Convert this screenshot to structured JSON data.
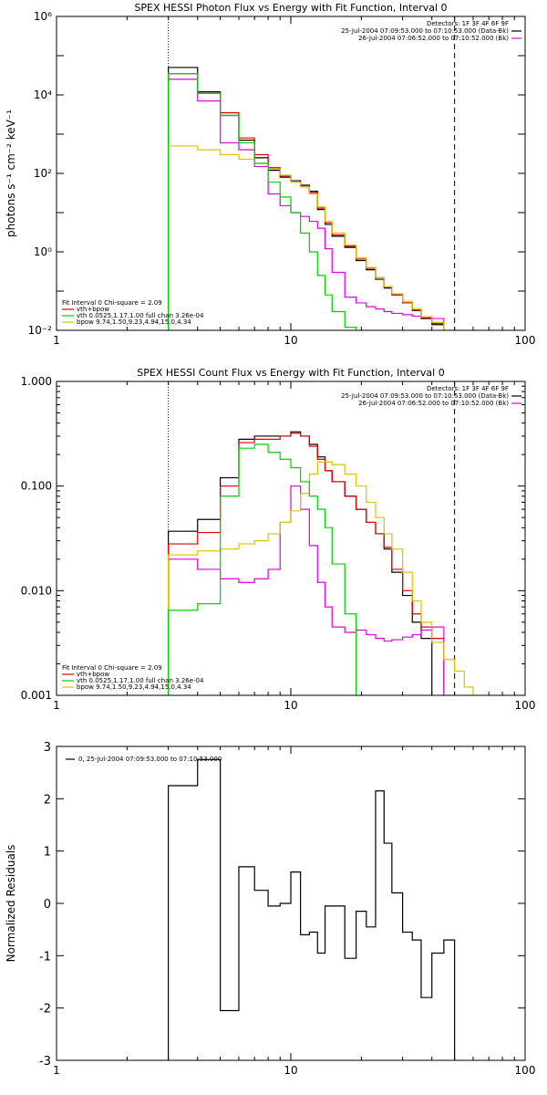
{
  "colors": {
    "data": "#000000",
    "total": "#e00000",
    "vth": "#00d000",
    "bpow": "#e0c000",
    "bk": "#e000e0"
  },
  "chart_data": [
    {
      "type": "line",
      "title": "SPEX HESSI Photon Flux vs Energy with Fit Function, Interval 0",
      "xlabel": "",
      "ylabel": "photons s⁻¹ cm⁻² keV⁻¹",
      "xlim": [
        1,
        100
      ],
      "ylim": [
        0.01,
        1000000
      ],
      "xscale": "log",
      "yscale": "log",
      "xticks": [
        "1",
        "10",
        "100"
      ],
      "yticks": [
        "10⁻²",
        "10⁰",
        "10²",
        "10⁴",
        "10⁶"
      ],
      "legend_right": [
        "Detectors: 1F 3F 4F 6F 9F",
        "25-Jul-2004 07:09:53.000 to 07:10:53.000 (Data-Bk)",
        "26-Jul-2004 07:06:52.000 to 07:10:52.000 (Bk)"
      ],
      "legend_left": [
        "Fit Interval 0   Chi-square = 2.09",
        "vth+bpow",
        "vth 0.0525,1.17,1.00  full chan 3.26e-04",
        "bpow 9.74,1.50,9.23,4.94,15.0,4.34"
      ],
      "edges": [
        3,
        4,
        5,
        6,
        7,
        8,
        9,
        10,
        11,
        12,
        13,
        14,
        15,
        17,
        19,
        21,
        23,
        25,
        27,
        30,
        33,
        36,
        40,
        45,
        50
      ],
      "series": [
        {
          "name": "25-Jul-2004 07:09:53.000 to 07:10:53.000 (Data-Bk)",
          "color": "#000000",
          "values": [
            50000,
            12000,
            3000,
            700,
            250,
            120,
            80,
            65,
            50,
            35,
            12,
            5,
            2.5,
            1.3,
            0.6,
            0.35,
            0.2,
            0.12,
            0.08,
            0.05,
            0.032,
            0.02,
            0.014
          ]
        },
        {
          "name": "vth+bpow",
          "color": "#e00000",
          "values": [
            35000,
            11000,
            3500,
            800,
            300,
            140,
            85,
            60,
            48,
            32,
            13,
            5.5,
            2.7,
            1.4,
            0.65,
            0.38,
            0.22,
            0.13,
            0.08,
            0.05,
            0.033,
            0.021,
            0.015
          ]
        },
        {
          "name": "vth 0.0525,1.17,1.00  full chan 3.26e-04",
          "color": "#00d000",
          "values": [
            35000,
            11000,
            3000,
            600,
            180,
            60,
            25,
            10,
            3,
            1,
            0.25,
            0.08,
            0.03,
            0.012
          ]
        },
        {
          "name": "bpow 9.74,1.50,9.23,4.94,15.0,4.34",
          "color": "#e0c000",
          "values": [
            500,
            400,
            300,
            230,
            180,
            130,
            90,
            60,
            45,
            30,
            14,
            6,
            3,
            1.5,
            0.7,
            0.4,
            0.22,
            0.13,
            0.085,
            0.055,
            0.035,
            0.022,
            0.016,
            0.01
          ]
        },
        {
          "name": "26-Jul-2004 07:06:52.000 to 07:10:52.000 (Bk)",
          "color": "#e000e0",
          "values": [
            25000,
            7000,
            600,
            400,
            150,
            30,
            15,
            10,
            8,
            6,
            4,
            1.2,
            0.3,
            0.07,
            0.05,
            0.04,
            0.035,
            0.03,
            0.027,
            0.025,
            0.023,
            0.022,
            0.02
          ]
        }
      ],
      "vlines": [
        {
          "x": 3,
          "style": "dotted"
        },
        {
          "x": 50,
          "style": "dashed"
        }
      ]
    },
    {
      "type": "line",
      "title": "SPEX HESSI Count Flux vs Energy with Fit Function, Interval 0",
      "xlabel": "",
      "ylabel": "",
      "xlim": [
        1,
        100
      ],
      "ylim": [
        0.001,
        1
      ],
      "xscale": "log",
      "yscale": "log",
      "xticks": [
        "1",
        "10",
        "100"
      ],
      "yticks": [
        "0.001",
        "0.010",
        "0.100",
        "1.000"
      ],
      "legend_right": [
        "Detectors: 1F 3F 4F 6F 9F",
        "25-Jul-2004 07:09:53.000 to 07:10:53.000 (Data-Bk)",
        "26-Jul-2004 07:06:52.000 to 07:10:52.000 (Bk)"
      ],
      "legend_left": [
        "Fit Interval 0   Chi-square = 2.09",
        "vth+bpow",
        "vth 0.0525,1.17,1.00  full chan 3.26e-04",
        "bpow 9.74,1.50,9.23,4.94,15.0,4.34"
      ],
      "edges": [
        3,
        4,
        5,
        6,
        7,
        8,
        9,
        10,
        11,
        12,
        13,
        14,
        15,
        17,
        19,
        21,
        23,
        25,
        27,
        30,
        33,
        36,
        40,
        45,
        50,
        55,
        60,
        65
      ],
      "series": [
        {
          "name": "25-Jul-2004 07:09:53.000 to 07:10:53.000 (Data-Bk)",
          "color": "#000000",
          "values": [
            0.037,
            0.048,
            0.12,
            0.28,
            0.3,
            0.3,
            0.3,
            0.33,
            0.3,
            0.25,
            0.19,
            0.14,
            0.11,
            0.08,
            0.06,
            0.045,
            0.035,
            0.025,
            0.015,
            0.009,
            0.005,
            0.0035
          ]
        },
        {
          "name": "vth+bpow",
          "color": "#e00000",
          "values": [
            0.028,
            0.036,
            0.1,
            0.26,
            0.28,
            0.28,
            0.3,
            0.32,
            0.3,
            0.24,
            0.18,
            0.14,
            0.11,
            0.08,
            0.06,
            0.045,
            0.035,
            0.026,
            0.016,
            0.01,
            0.006,
            0.0045,
            0.0035
          ]
        },
        {
          "name": "vth 0.0525,1.17,1.00  full chan 3.26e-04",
          "color": "#00d000",
          "values": [
            0.0065,
            0.0075,
            0.08,
            0.23,
            0.25,
            0.21,
            0.18,
            0.15,
            0.11,
            0.08,
            0.06,
            0.04,
            0.018,
            0.006,
            0.0009
          ]
        },
        {
          "name": "bpow 9.74,1.50,9.23,4.94,15.0,4.34",
          "color": "#e0c000",
          "values": [
            0.022,
            0.024,
            0.025,
            0.028,
            0.03,
            0.035,
            0.045,
            0.058,
            0.085,
            0.13,
            0.17,
            0.17,
            0.16,
            0.13,
            0.1,
            0.07,
            0.05,
            0.035,
            0.025,
            0.015,
            0.008,
            0.005,
            0.0032,
            0.0022,
            0.0017,
            0.0012,
            0.0009
          ]
        },
        {
          "name": "26-Jul-2004 07:06:52.000 to 07:10:52.000 (Bk)",
          "color": "#e000e0",
          "values": [
            0.02,
            0.016,
            0.013,
            0.012,
            0.013,
            0.016,
            0.045,
            0.1,
            0.06,
            0.027,
            0.012,
            0.007,
            0.0045,
            0.004,
            0.0042,
            0.0038,
            0.0035,
            0.0033,
            0.0034,
            0.0036,
            0.0038,
            0.0042,
            0.0045,
            0.0001
          ]
        }
      ],
      "vlines": [
        {
          "x": 3,
          "style": "dotted"
        },
        {
          "x": 50,
          "style": "dashed"
        }
      ]
    },
    {
      "type": "line",
      "title": "",
      "xlabel": "",
      "ylabel": "Normalized Residuals",
      "xlim": [
        1,
        100
      ],
      "ylim": [
        -3,
        3
      ],
      "xscale": "log",
      "yscale": "linear",
      "xticks": [
        "1",
        "10",
        "100"
      ],
      "yticks": [
        "-3",
        "-2",
        "-1",
        "0",
        "1",
        "2",
        "3"
      ],
      "legend": "0, 25-Jul-2004 07:09:53.000 to 07:10:53.000",
      "edges": [
        3,
        4,
        5,
        6,
        7,
        8,
        9,
        10,
        11,
        12,
        13,
        14,
        15,
        17,
        19,
        21,
        23,
        25,
        27,
        30,
        33,
        36,
        40,
        45,
        50
      ],
      "values": [
        2.25,
        2.75,
        -2.05,
        0.7,
        0.25,
        -0.05,
        0.0,
        0.6,
        -0.6,
        -0.55,
        -0.95,
        -0.05,
        -0.05,
        -1.05,
        -0.15,
        -0.45,
        2.15,
        1.15,
        0.2,
        -0.55,
        -0.7,
        -1.8,
        -0.95,
        -0.7
      ]
    }
  ]
}
